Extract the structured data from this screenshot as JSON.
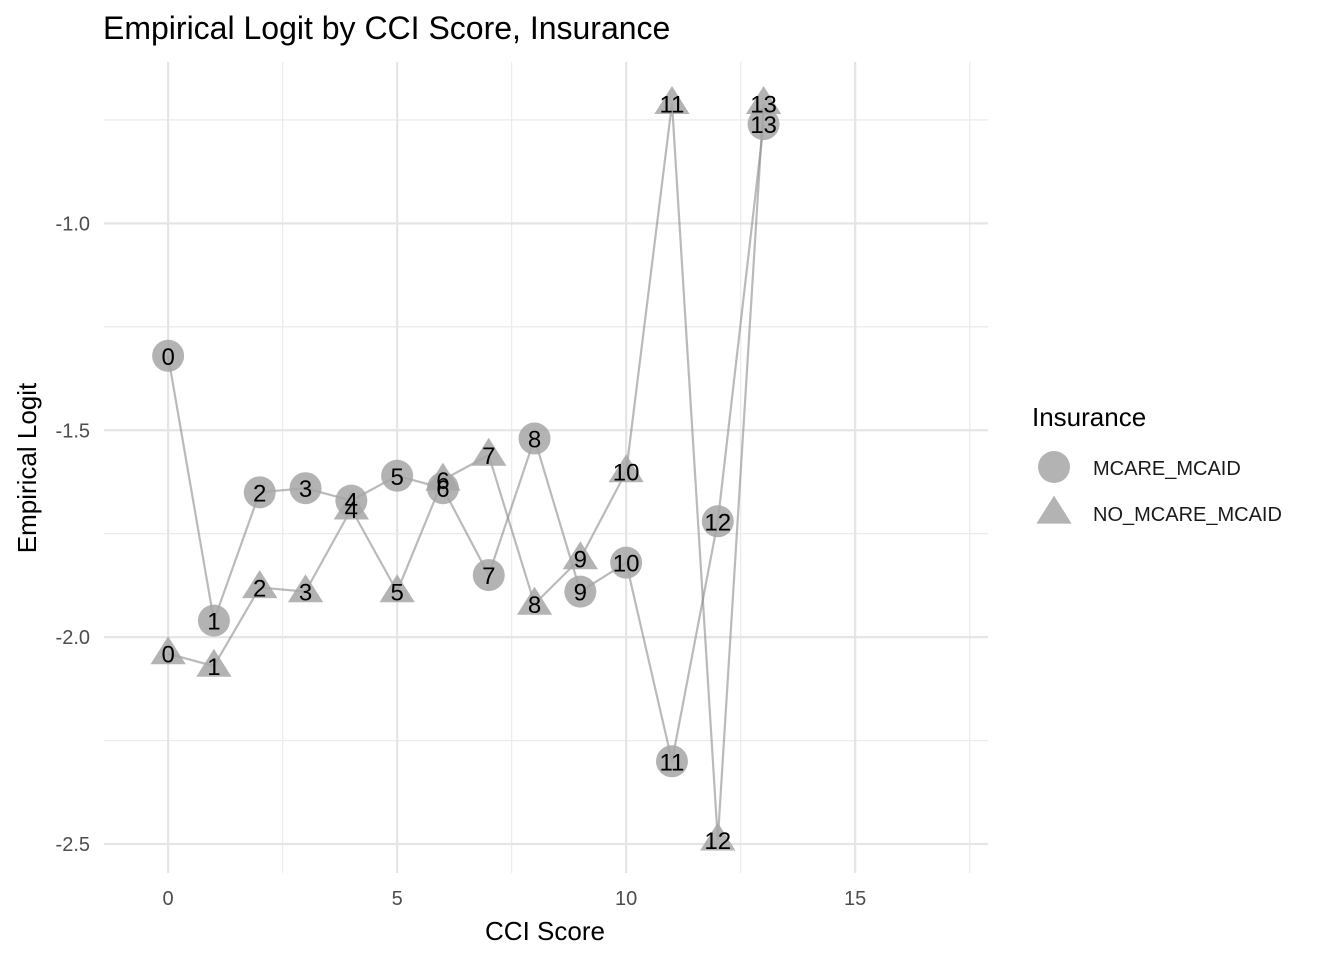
{
  "chart_data": {
    "type": "scatter",
    "title": "Empirical Logit by CCI Score, Insurance",
    "xlabel": "CCI Score",
    "ylabel": "Empirical Logit",
    "xlim": [
      -1.4,
      17.9
    ],
    "ylim": [
      -2.57,
      -0.61
    ],
    "x_ticks": [
      0,
      5,
      10,
      15
    ],
    "x_tick_labels": [
      "0",
      "5",
      "10",
      "15"
    ],
    "y_ticks": [
      -2.5,
      -2.0,
      -1.5,
      -1.0
    ],
    "y_tick_labels": [
      "-2.5",
      "-2.0",
      "-1.5",
      "-1.0"
    ],
    "grid": true,
    "legend": {
      "title": "Insurance",
      "position": "right"
    },
    "series": [
      {
        "name": "MCARE_MCAID",
        "marker": "circle",
        "x": [
          0,
          1,
          2,
          3,
          4,
          5,
          6,
          7,
          8,
          9,
          10,
          11,
          12,
          13
        ],
        "y": [
          -1.32,
          -1.96,
          -1.65,
          -1.64,
          -1.67,
          -1.61,
          -1.64,
          -1.85,
          -1.52,
          -1.89,
          -1.82,
          -2.3,
          -1.72,
          -0.76
        ],
        "labels": [
          "0",
          "1",
          "2",
          "3",
          "4",
          "5",
          "6",
          "7",
          "8",
          "9",
          "10",
          "11",
          "12",
          "13"
        ]
      },
      {
        "name": "NO_MCARE_MCAID",
        "marker": "triangle",
        "x": [
          0,
          1,
          2,
          3,
          4,
          5,
          6,
          7,
          8,
          9,
          10,
          11,
          12,
          13
        ],
        "y": [
          -2.04,
          -2.07,
          -1.88,
          -1.89,
          -1.69,
          -1.89,
          -1.62,
          -1.56,
          -1.92,
          -1.81,
          -1.6,
          -0.71,
          -2.49,
          -0.71
        ],
        "labels": [
          "0",
          "1",
          "2",
          "3",
          "4",
          "5",
          "6",
          "7",
          "8",
          "9",
          "10",
          "11",
          "12",
          "13"
        ]
      }
    ]
  }
}
